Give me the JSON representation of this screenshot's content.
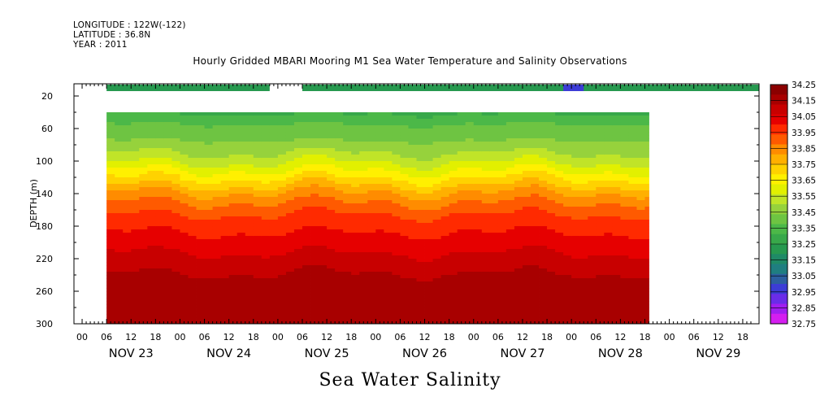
{
  "header": {
    "longitude": "LONGITUDE : 122W(-122)",
    "latitude": "LATITUDE : 36.8N",
    "year": "YEAR : 2011"
  },
  "chart_data": {
    "type": "heatmap",
    "title": "Hourly Gridded MBARI Mooring M1 Sea Water Temperature and Salinity Observations",
    "bottom_title": "Sea Water Salinity",
    "ylabel": "DEPTH (m)",
    "ylim": [
      300,
      5
    ],
    "y_ticks": [
      20,
      60,
      100,
      140,
      180,
      220,
      260,
      300
    ],
    "x_ticks_hours": [
      "00",
      "06",
      "12",
      "18",
      "00",
      "06",
      "12",
      "18",
      "00",
      "06",
      "12",
      "18",
      "00",
      "06",
      "12",
      "18",
      "00",
      "06",
      "12",
      "18",
      "00",
      "06",
      "12",
      "18",
      "00",
      "06",
      "12",
      "18"
    ],
    "x_day_labels": [
      "NOV 23",
      "NOV 24",
      "NOV 25",
      "NOV 26",
      "NOV 27",
      "NOV 28",
      "NOV 29"
    ],
    "x_range_hours": [
      -2,
      166
    ],
    "colorbar": {
      "labels": [
        "34.25",
        "34.15",
        "34.05",
        "33.95",
        "33.85",
        "33.75",
        "33.65",
        "33.55",
        "33.45",
        "33.35",
        "33.25",
        "33.15",
        "33.05",
        "32.95",
        "32.85",
        "32.75"
      ],
      "colors": [
        "#8b0000",
        "#a80000",
        "#c80000",
        "#e60000",
        "#ff2a00",
        "#ff5a00",
        "#ff8c00",
        "#ffb000",
        "#ffd200",
        "#fff000",
        "#e2f000",
        "#c0e428",
        "#96d23c",
        "#6ec442",
        "#4cb848",
        "#38a84a",
        "#27994f",
        "#1f8a66",
        "#1f7e80",
        "#2c5fa0",
        "#3c3cd6",
        "#6a2ce8",
        "#a01ef0",
        "#d41ef0"
      ]
    },
    "surface_segments": [
      {
        "start_hour": 6,
        "end_hour": 46,
        "value": 33.25
      },
      {
        "start_hour": 54,
        "end_hour": 166,
        "value": 33.25
      },
      {
        "start_hour": 118,
        "end_hour": 123,
        "value": 32.95
      }
    ],
    "main_field": {
      "start_hour": 6,
      "end_hour": 139,
      "top_depth": 40,
      "bottom_depth": 300,
      "profile": [
        {
          "depth": 40,
          "value": 33.3
        },
        {
          "depth": 60,
          "value": 33.4
        },
        {
          "depth": 80,
          "value": 33.45
        },
        {
          "depth": 100,
          "value": 33.55
        },
        {
          "depth": 120,
          "value": 33.68
        },
        {
          "depth": 140,
          "value": 33.82
        },
        {
          "depth": 160,
          "value": 33.92
        },
        {
          "depth": 180,
          "value": 33.98
        },
        {
          "depth": 200,
          "value": 34.03
        },
        {
          "depth": 220,
          "value": 34.08
        },
        {
          "depth": 240,
          "value": 34.13
        },
        {
          "depth": 260,
          "value": 34.16
        },
        {
          "depth": 280,
          "value": 34.17
        },
        {
          "depth": 300,
          "value": 34.18
        }
      ]
    }
  }
}
